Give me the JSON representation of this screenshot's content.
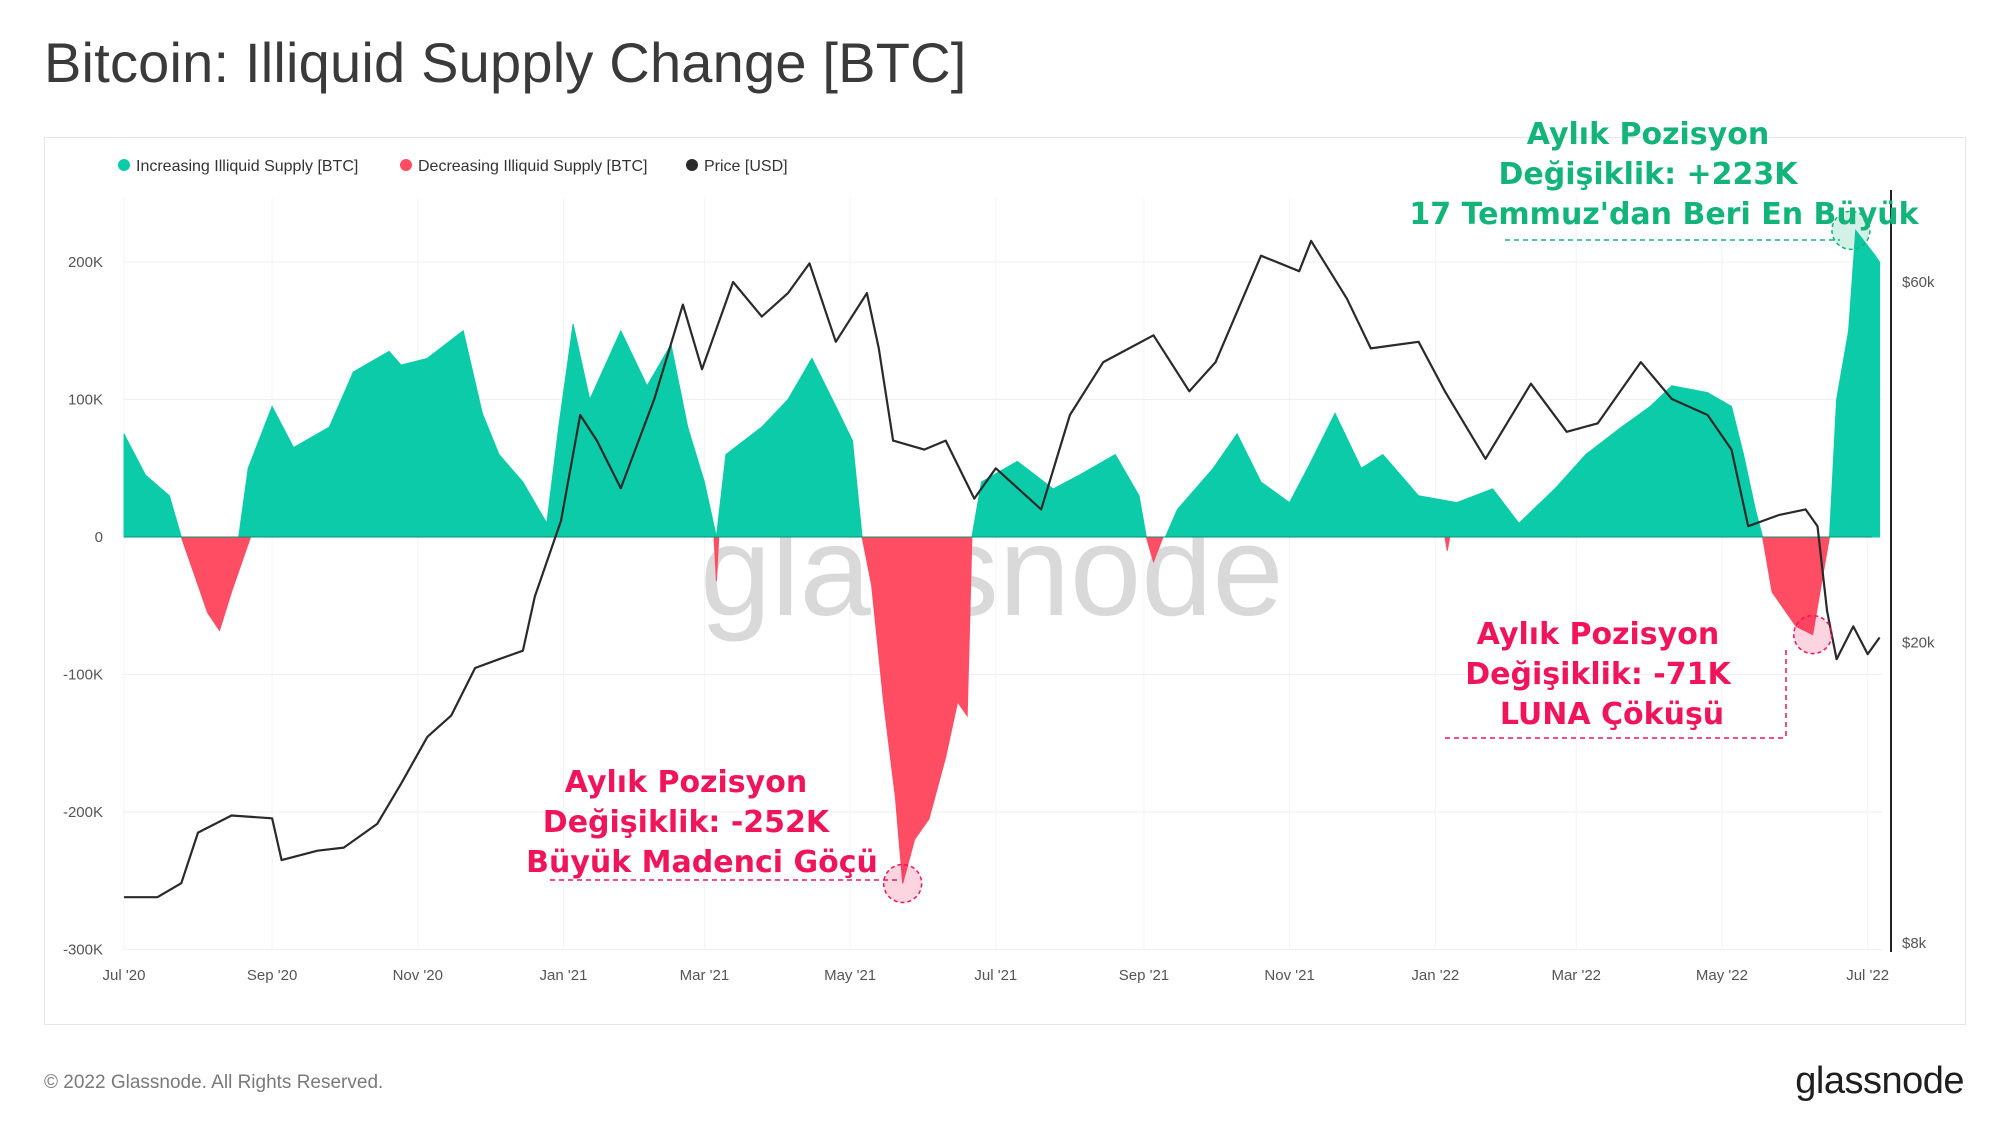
{
  "title": "Bitcoin: Illiquid Supply Change [BTC]",
  "footer": "© 2022 Glassnode. All Rights Reserved.",
  "brand": "glassnode",
  "watermark": "glassnode",
  "colors": {
    "increase": "#0ccba8",
    "decrease": "#ff4d64",
    "price": "#2a2a2a",
    "anno_green": "#12b47a",
    "anno_red": "#f0145a"
  },
  "legend": [
    {
      "label": "Increasing Illiquid Supply [BTC]",
      "color": "#0ccba8"
    },
    {
      "label": "Decreasing Illiquid Supply [BTC]",
      "color": "#ff4d64"
    },
    {
      "label": "Price [USD]",
      "color": "#2a2a2a"
    }
  ],
  "annotations": [
    {
      "lines": [
        "Aylık Pozisyon",
        "Değişiklik: +223K",
        "17 Temmuz'dan Beri En Büyük"
      ],
      "color": "#12b47a",
      "date": "2022-06-24",
      "value": 223000
    },
    {
      "lines": [
        "Aylık Pozisyon",
        "Değişiklik: -71K",
        "LUNA Çöküşü"
      ],
      "color": "#f0145a",
      "date": "2022-06-08",
      "value": -71000
    },
    {
      "lines": [
        "Aylık Pozisyon",
        "Değişiklik: -252K",
        "Büyük Madenci Göçü"
      ],
      "color": "#f0145a",
      "date": "2021-05-23",
      "value": -252000
    }
  ],
  "chart_data": {
    "type": "area",
    "title": "Bitcoin: Illiquid Supply Change [BTC]",
    "x_tick_labels": [
      "Jul '20",
      "Sep '20",
      "Nov '20",
      "Jan '21",
      "Mar '21",
      "May '21",
      "Jul '21",
      "Sep '21",
      "Nov '21",
      "Jan '22",
      "Mar '22",
      "May '22",
      "Jul '22"
    ],
    "x_tick_dates": [
      "2020-07-01",
      "2020-09-01",
      "2020-11-01",
      "2021-01-01",
      "2021-03-01",
      "2021-05-01",
      "2021-07-01",
      "2021-09-01",
      "2021-11-01",
      "2022-01-01",
      "2022-03-01",
      "2022-05-01",
      "2022-07-01"
    ],
    "x_range": [
      "2020-07-01",
      "2022-07-07"
    ],
    "y_left": {
      "label": "",
      "ticks": [
        200000,
        100000,
        0,
        -100000,
        -200000,
        -300000
      ],
      "tick_labels": [
        "200K",
        "100K",
        "0",
        "-100K",
        "-200K",
        "-300K"
      ],
      "range": [
        -300000,
        250000
      ]
    },
    "y_right": {
      "label": "",
      "scale": "log",
      "ticks": [
        60000,
        20000,
        8000
      ],
      "tick_labels": [
        "$60k",
        "$20k",
        "$8k"
      ],
      "range": [
        8000,
        100000
      ]
    },
    "grid": true,
    "legend_position": "top-left",
    "series": [
      {
        "name": "Increasing Illiquid Supply [BTC]",
        "axis": "left",
        "points": [
          [
            "2020-07-01",
            75000
          ],
          [
            "2020-07-10",
            45000
          ],
          [
            "2020-07-20",
            30000
          ],
          [
            "2020-07-25",
            0
          ],
          [
            "2020-08-18",
            0
          ],
          [
            "2020-08-22",
            50000
          ],
          [
            "2020-09-01",
            95000
          ],
          [
            "2020-09-10",
            65000
          ],
          [
            "2020-09-25",
            80000
          ],
          [
            "2020-10-05",
            120000
          ],
          [
            "2020-10-20",
            135000
          ],
          [
            "2020-10-25",
            125000
          ],
          [
            "2020-11-05",
            130000
          ],
          [
            "2020-11-20",
            150000
          ],
          [
            "2020-11-28",
            90000
          ],
          [
            "2020-12-05",
            60000
          ],
          [
            "2020-12-15",
            40000
          ],
          [
            "2020-12-25",
            10000
          ],
          [
            "2020-12-30",
            80000
          ],
          [
            "2021-01-05",
            155000
          ],
          [
            "2021-01-12",
            100000
          ],
          [
            "2021-01-25",
            150000
          ],
          [
            "2021-02-05",
            110000
          ],
          [
            "2021-02-15",
            140000
          ],
          [
            "2021-02-22",
            80000
          ],
          [
            "2021-03-01",
            40000
          ],
          [
            "2021-03-06",
            0
          ],
          [
            "2021-03-10",
            60000
          ],
          [
            "2021-03-25",
            80000
          ],
          [
            "2021-04-05",
            100000
          ],
          [
            "2021-04-15",
            130000
          ],
          [
            "2021-04-25",
            95000
          ],
          [
            "2021-05-02",
            70000
          ],
          [
            "2021-05-06",
            0
          ],
          [
            "2021-06-21",
            0
          ],
          [
            "2021-06-25",
            40000
          ],
          [
            "2021-07-10",
            55000
          ],
          [
            "2021-07-25",
            35000
          ],
          [
            "2021-08-05",
            45000
          ],
          [
            "2021-08-20",
            60000
          ],
          [
            "2021-08-30",
            30000
          ],
          [
            "2021-09-02",
            0
          ],
          [
            "2021-09-10",
            0
          ],
          [
            "2021-09-15",
            20000
          ],
          [
            "2021-09-30",
            50000
          ],
          [
            "2021-10-10",
            75000
          ],
          [
            "2021-10-20",
            40000
          ],
          [
            "2021-11-01",
            25000
          ],
          [
            "2021-11-10",
            55000
          ],
          [
            "2021-11-20",
            90000
          ],
          [
            "2021-12-01",
            50000
          ],
          [
            "2021-12-10",
            60000
          ],
          [
            "2021-12-25",
            30000
          ],
          [
            "2022-01-10",
            25000
          ],
          [
            "2022-01-25",
            35000
          ],
          [
            "2022-02-05",
            10000
          ],
          [
            "2022-02-20",
            35000
          ],
          [
            "2022-03-05",
            60000
          ],
          [
            "2022-03-20",
            80000
          ],
          [
            "2022-04-01",
            95000
          ],
          [
            "2022-04-10",
            110000
          ],
          [
            "2022-04-25",
            105000
          ],
          [
            "2022-05-05",
            95000
          ],
          [
            "2022-05-10",
            60000
          ],
          [
            "2022-05-15",
            20000
          ],
          [
            "2022-05-18",
            0
          ],
          [
            "2022-06-15",
            0
          ],
          [
            "2022-06-18",
            100000
          ],
          [
            "2022-06-23",
            150000
          ],
          [
            "2022-06-26",
            223000
          ],
          [
            "2022-07-04",
            205000
          ],
          [
            "2022-07-06",
            200000
          ]
        ]
      },
      {
        "name": "Decreasing Illiquid Supply [BTC]",
        "axis": "left",
        "points": [
          [
            "2020-07-25",
            0
          ],
          [
            "2020-07-31",
            -30000
          ],
          [
            "2020-08-05",
            -55000
          ],
          [
            "2020-08-10",
            -68000
          ],
          [
            "2020-08-15",
            -40000
          ],
          [
            "2020-08-20",
            -15000
          ],
          [
            "2020-08-23",
            0
          ],
          [
            "2021-03-05",
            0
          ],
          [
            "2021-03-06",
            -32000
          ],
          [
            "2021-03-07",
            0
          ],
          [
            "2021-05-06",
            0
          ],
          [
            "2021-05-10",
            -35000
          ],
          [
            "2021-05-15",
            -120000
          ],
          [
            "2021-05-20",
            -190000
          ],
          [
            "2021-05-23",
            -252000
          ],
          [
            "2021-05-28",
            -220000
          ],
          [
            "2021-06-03",
            -205000
          ],
          [
            "2021-06-10",
            -160000
          ],
          [
            "2021-06-15",
            -120000
          ],
          [
            "2021-06-19",
            -130000
          ],
          [
            "2021-06-21",
            0
          ],
          [
            "2021-09-02",
            0
          ],
          [
            "2021-09-05",
            -18000
          ],
          [
            "2021-09-09",
            0
          ],
          [
            "2022-01-05",
            0
          ],
          [
            "2022-01-06",
            -10000
          ],
          [
            "2022-01-07",
            0
          ],
          [
            "2022-05-18",
            0
          ],
          [
            "2022-05-22",
            -40000
          ],
          [
            "2022-06-01",
            -65000
          ],
          [
            "2022-06-08",
            -71000
          ],
          [
            "2022-06-12",
            -30000
          ],
          [
            "2022-06-15",
            0
          ]
        ]
      },
      {
        "name": "Price [USD]",
        "axis": "right",
        "points": [
          [
            "2020-07-01",
            9200
          ],
          [
            "2020-07-15",
            9200
          ],
          [
            "2020-07-25",
            9600
          ],
          [
            "2020-08-01",
            11200
          ],
          [
            "2020-08-15",
            11800
          ],
          [
            "2020-09-01",
            11700
          ],
          [
            "2020-09-05",
            10300
          ],
          [
            "2020-09-20",
            10600
          ],
          [
            "2020-10-01",
            10700
          ],
          [
            "2020-10-15",
            11500
          ],
          [
            "2020-10-25",
            13000
          ],
          [
            "2020-11-05",
            15000
          ],
          [
            "2020-11-15",
            16000
          ],
          [
            "2020-11-25",
            18500
          ],
          [
            "2020-12-05",
            19000
          ],
          [
            "2020-12-15",
            19500
          ],
          [
            "2020-12-20",
            23000
          ],
          [
            "2020-12-31",
            29000
          ],
          [
            "2021-01-08",
            40000
          ],
          [
            "2021-01-15",
            37000
          ],
          [
            "2021-01-25",
            32000
          ],
          [
            "2021-02-08",
            42000
          ],
          [
            "2021-02-20",
            56000
          ],
          [
            "2021-02-28",
            46000
          ],
          [
            "2021-03-13",
            60000
          ],
          [
            "2021-03-25",
            54000
          ],
          [
            "2021-04-05",
            58000
          ],
          [
            "2021-04-14",
            63500
          ],
          [
            "2021-04-25",
            50000
          ],
          [
            "2021-05-08",
            58000
          ],
          [
            "2021-05-13",
            49000
          ],
          [
            "2021-05-19",
            37000
          ],
          [
            "2021-06-01",
            36000
          ],
          [
            "2021-06-10",
            37000
          ],
          [
            "2021-06-22",
            31000
          ],
          [
            "2021-07-01",
            34000
          ],
          [
            "2021-07-20",
            30000
          ],
          [
            "2021-08-01",
            40000
          ],
          [
            "2021-08-15",
            47000
          ],
          [
            "2021-09-05",
            51000
          ],
          [
            "2021-09-20",
            43000
          ],
          [
            "2021-10-01",
            47000
          ],
          [
            "2021-10-20",
            65000
          ],
          [
            "2021-11-05",
            62000
          ],
          [
            "2021-11-10",
            68000
          ],
          [
            "2021-11-25",
            57000
          ],
          [
            "2021-12-05",
            49000
          ],
          [
            "2021-12-25",
            50000
          ],
          [
            "2022-01-05",
            43000
          ],
          [
            "2022-01-22",
            35000
          ],
          [
            "2022-02-10",
            44000
          ],
          [
            "2022-02-25",
            38000
          ],
          [
            "2022-03-10",
            39000
          ],
          [
            "2022-03-28",
            47000
          ],
          [
            "2022-04-10",
            42000
          ],
          [
            "2022-04-25",
            40000
          ],
          [
            "2022-05-05",
            36000
          ],
          [
            "2022-05-12",
            28500
          ],
          [
            "2022-05-25",
            29500
          ],
          [
            "2022-06-05",
            30000
          ],
          [
            "2022-06-10",
            28500
          ],
          [
            "2022-06-14",
            22000
          ],
          [
            "2022-06-18",
            19000
          ],
          [
            "2022-06-25",
            21000
          ],
          [
            "2022-07-01",
            19300
          ],
          [
            "2022-07-06",
            20300
          ]
        ]
      }
    ]
  }
}
